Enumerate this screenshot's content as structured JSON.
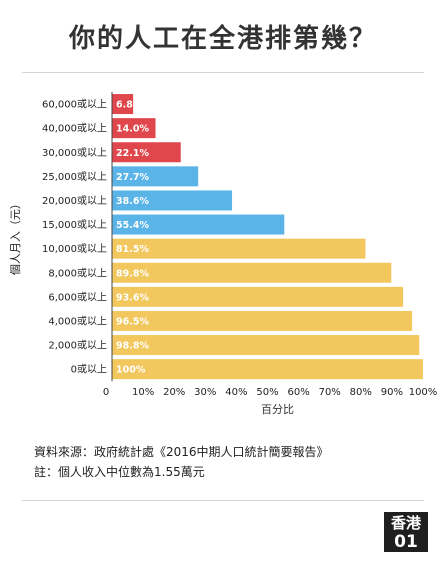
{
  "title": "你的人工在全港排第幾？",
  "source_text": "資料來源：政府統計處《2016中期人口統計簡要報告》",
  "note_text": "註：個人收入中位數為1.55萬元",
  "logo": {
    "top": "香港",
    "bottom": "01"
  },
  "colors": {
    "red": "#e0474c",
    "blue": "#5ab4e8",
    "yellow": "#f2c85e",
    "label": "#ffffff"
  },
  "chart_data": {
    "type": "bar",
    "orientation": "horizontal",
    "title": "你的人工在全港排第幾？",
    "xlabel": "百分比",
    "ylabel": "個人月入（元）",
    "categories": [
      "60,000或以上",
      "40,000或以上",
      "30,000或以上",
      "25,000或以上",
      "20,000或以上",
      "15,000或以上",
      "10,000或以上",
      "8,000或以上",
      "6,000或以上",
      "4,000或以上",
      "2,000或以上",
      "0或以上"
    ],
    "values": [
      6.8,
      14.0,
      22.1,
      27.7,
      38.6,
      55.4,
      81.5,
      89.8,
      93.6,
      96.5,
      98.8,
      100
    ],
    "value_labels": [
      "6.80%",
      "14.0%",
      "22.1%",
      "27.7%",
      "38.6%",
      "55.4%",
      "81.5%",
      "89.8%",
      "93.6%",
      "96.5%",
      "98.8%",
      "100%"
    ],
    "bar_colors": [
      "red",
      "red",
      "red",
      "blue",
      "blue",
      "blue",
      "yellow",
      "yellow",
      "yellow",
      "yellow",
      "yellow",
      "yellow"
    ],
    "xlim": [
      0,
      100
    ],
    "xticks": [
      0,
      10,
      20,
      30,
      40,
      50,
      60,
      70,
      80,
      90,
      100
    ],
    "xtick_labels": [
      "0",
      "10%",
      "20%",
      "30%",
      "40%",
      "50%",
      "60%",
      "70%",
      "80%",
      "90%",
      "100%"
    ],
    "grid": false,
    "legend": "none"
  }
}
